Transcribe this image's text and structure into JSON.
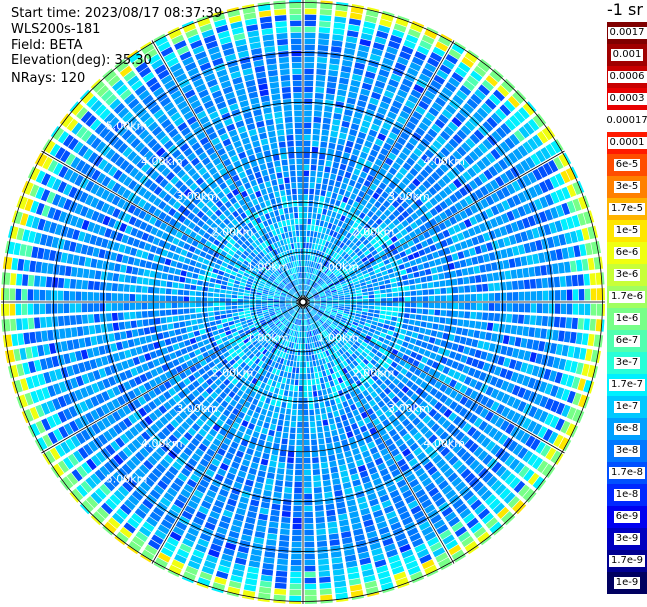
{
  "header": {
    "start_time": "Start time: 2023/08/17 08:37:39",
    "instrument": "WLS200s-181",
    "field": "Field: BETA",
    "elevation": "Elevation(deg): 35.30",
    "nrays": "NRays: 120"
  },
  "colorbar": {
    "unit": "-1 sr",
    "items": [
      {
        "label": "0.0017",
        "color": "#800000"
      },
      {
        "label": "0.001",
        "color": "#a00000"
      },
      {
        "label": "0.0006",
        "color": "#c80000"
      },
      {
        "label": "0.0003",
        "color": "#e80000"
      },
      {
        "label": "0.00017",
        "color": "#ffffff"
      },
      {
        "label": "0.0001",
        "color": "#ff1a00"
      },
      {
        "label": "6e-5",
        "color": "#ff4d00"
      },
      {
        "label": "3e-5",
        "color": "#ff8000"
      },
      {
        "label": "1.7e-5",
        "color": "#ffb300"
      },
      {
        "label": "1e-5",
        "color": "#ffe600"
      },
      {
        "label": "6e-6",
        "color": "#f0ff10"
      },
      {
        "label": "3e-6",
        "color": "#c8ff38"
      },
      {
        "label": "1.7e-6",
        "color": "#a0ff60"
      },
      {
        "label": "1e-6",
        "color": "#78ff88"
      },
      {
        "label": "6e-7",
        "color": "#50ffb0"
      },
      {
        "label": "3e-7",
        "color": "#28ffd8"
      },
      {
        "label": "1.7e-7",
        "color": "#00f0ff"
      },
      {
        "label": "1e-7",
        "color": "#00c8ff"
      },
      {
        "label": "6e-8",
        "color": "#00a0ff"
      },
      {
        "label": "3e-8",
        "color": "#0078ff"
      },
      {
        "label": "1.7e-8",
        "color": "#0050ff"
      },
      {
        "label": "1e-8",
        "color": "#0028ff"
      },
      {
        "label": "6e-9",
        "color": "#0000f0"
      },
      {
        "label": "3e-9",
        "color": "#0000c0"
      },
      {
        "label": "1.7e-9",
        "color": "#000090"
      },
      {
        "label": "1e-9",
        "color": "#000060"
      }
    ]
  },
  "chart_data": {
    "type": "heatmap",
    "projection": "polar",
    "nrays": 120,
    "range_rings_km": [
      1,
      2,
      3,
      4,
      5,
      6
    ],
    "range_max_km": 6.05,
    "ring_labels": [
      {
        "text": "1.00km",
        "angle_deg": [
          45,
          135,
          225,
          315
        ],
        "range_km": 1.0
      },
      {
        "text": "2.00km",
        "angle_deg": [
          45,
          135,
          225,
          315
        ],
        "range_km": 2.0
      },
      {
        "text": "3.00km",
        "angle_deg": [
          45,
          135,
          225,
          315
        ],
        "range_km": 3.0
      },
      {
        "text": "4.00km",
        "angle_deg": [
          45,
          135,
          225,
          315
        ],
        "range_km": 4.0
      },
      {
        "text": "5.00km",
        "angle_deg": [
          315,
          225
        ],
        "range_km": 5.0
      }
    ],
    "spoke_angles_deg": [
      0,
      30,
      60,
      90,
      120,
      150,
      180,
      210,
      240,
      270,
      300,
      330
    ],
    "field": "BETA",
    "dominant_level": "3e-8",
    "edge_levels": [
      "1e-6",
      "6e-6",
      "1e-5"
    ]
  }
}
